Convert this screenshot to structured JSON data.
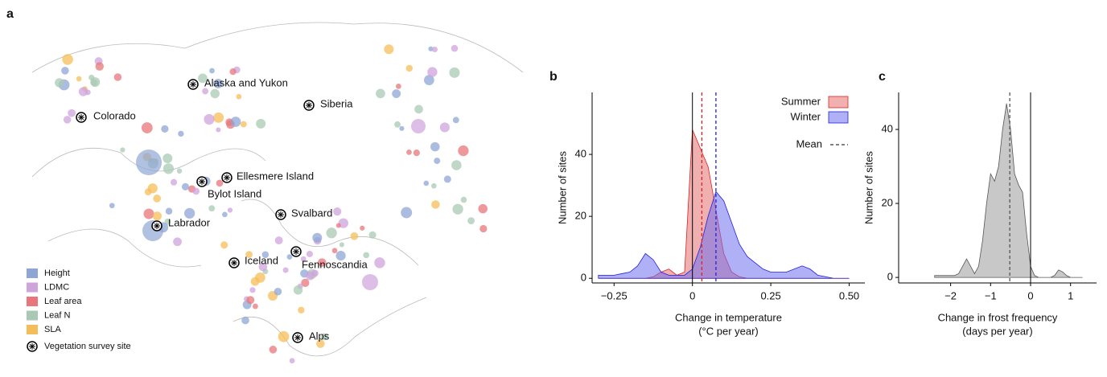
{
  "map": {
    "panel_label": "a",
    "sites": [
      "Alaska and Yukon",
      "Colorado",
      "Siberia",
      "Ellesmere Island",
      "Bylot Island",
      "Labrador",
      "Svalbard",
      "Iceland",
      "Fennoscandia",
      "Alps"
    ],
    "legend": [
      {
        "name": "Height",
        "color": "#8ea6d4"
      },
      {
        "name": "LDMC",
        "color": "#cfa3dc"
      },
      {
        "name": "Leaf area",
        "color": "#e8767a"
      },
      {
        "name": "Leaf N",
        "color": "#a9c9b4"
      },
      {
        "name": "SLA",
        "color": "#f5bd5a"
      }
    ],
    "site_legend": "Vegetation survey site"
  },
  "chart_data": [
    {
      "type": "area",
      "panel_label": "b",
      "xlabel": [
        "Change in temperature",
        "(°C per year)"
      ],
      "ylabel": "Number of sites",
      "x": [
        -0.3,
        -0.275,
        -0.25,
        -0.225,
        -0.2,
        -0.175,
        -0.15,
        -0.125,
        -0.1,
        -0.075,
        -0.05,
        -0.025,
        0,
        0.025,
        0.05,
        0.075,
        0.1,
        0.125,
        0.15,
        0.175,
        0.2,
        0.225,
        0.25,
        0.275,
        0.3,
        0.325,
        0.35,
        0.375,
        0.4,
        0.425,
        0.45,
        0.475,
        0.5
      ],
      "series": [
        {
          "name": "Summer",
          "color": "#e36f6f",
          "line_color": "#e02020",
          "mean": 0.03,
          "values": [
            0,
            0,
            0,
            0,
            0,
            0,
            0,
            0.5,
            2,
            3,
            1,
            2,
            48,
            42,
            36,
            22,
            8,
            2,
            0.5,
            0,
            0,
            0,
            0,
            0,
            0,
            0,
            0,
            0,
            0,
            0,
            0,
            0,
            0
          ]
        },
        {
          "name": "Winter",
          "color": "#7070ee",
          "line_color": "#2020e0",
          "mean": 0.075,
          "values": [
            1,
            1,
            1,
            1.5,
            2,
            4,
            8,
            6,
            2,
            1,
            1,
            1,
            3,
            10,
            20,
            28,
            25,
            18,
            11,
            7,
            5,
            3,
            2,
            2,
            2,
            3,
            4,
            3,
            1,
            0.5,
            0,
            0,
            0
          ]
        }
      ],
      "mean_label": "Mean",
      "xlim": [
        -0.32,
        0.55
      ],
      "ylim": [
        -1.5,
        60
      ],
      "xticks": [
        {
          "value": -0.25,
          "label": "−0.25"
        },
        0,
        0.25,
        {
          "value": 0.5,
          "label": "0.50"
        }
      ],
      "yticks": [
        0,
        20,
        40
      ]
    },
    {
      "type": "area",
      "panel_label": "c",
      "xlabel": [
        "Change in frost frequency",
        "(days per year)"
      ],
      "ylabel": "Number of sites",
      "x": [
        -2.4,
        -2.3,
        -2.2,
        -2.1,
        -2,
        -1.9,
        -1.8,
        -1.7,
        -1.6,
        -1.5,
        -1.4,
        -1.3,
        -1.2,
        -1.1,
        -1,
        -0.9,
        -0.8,
        -0.7,
        -0.6,
        -0.5,
        -0.4,
        -0.3,
        -0.2,
        -0.1,
        0,
        0.1,
        0.2,
        0.3,
        0.4,
        0.5,
        0.6,
        0.7,
        0.8,
        0.9,
        1,
        1.1,
        1.2,
        1.3
      ],
      "series": [
        {
          "color": "#9a9a9a",
          "line_color": "#555555",
          "mean": -0.52,
          "values": [
            0.5,
            0.5,
            0.5,
            0.5,
            0.5,
            0.5,
            1,
            3,
            5,
            3,
            1,
            3,
            10,
            20,
            28,
            26,
            30,
            40,
            47,
            40,
            28,
            25,
            23,
            12,
            3,
            0.5,
            0,
            0,
            0,
            0,
            0.5,
            2,
            1.5,
            0.5,
            0,
            0,
            0,
            0
          ]
        }
      ],
      "xlim": [
        -3.3,
        1.65
      ],
      "ylim": [
        -1.5,
        50
      ],
      "xticks": [
        {
          "value": -2,
          "label": "−2"
        },
        {
          "value": -1,
          "label": "−1"
        },
        0,
        1
      ],
      "yticks": [
        0,
        20,
        40
      ]
    }
  ]
}
